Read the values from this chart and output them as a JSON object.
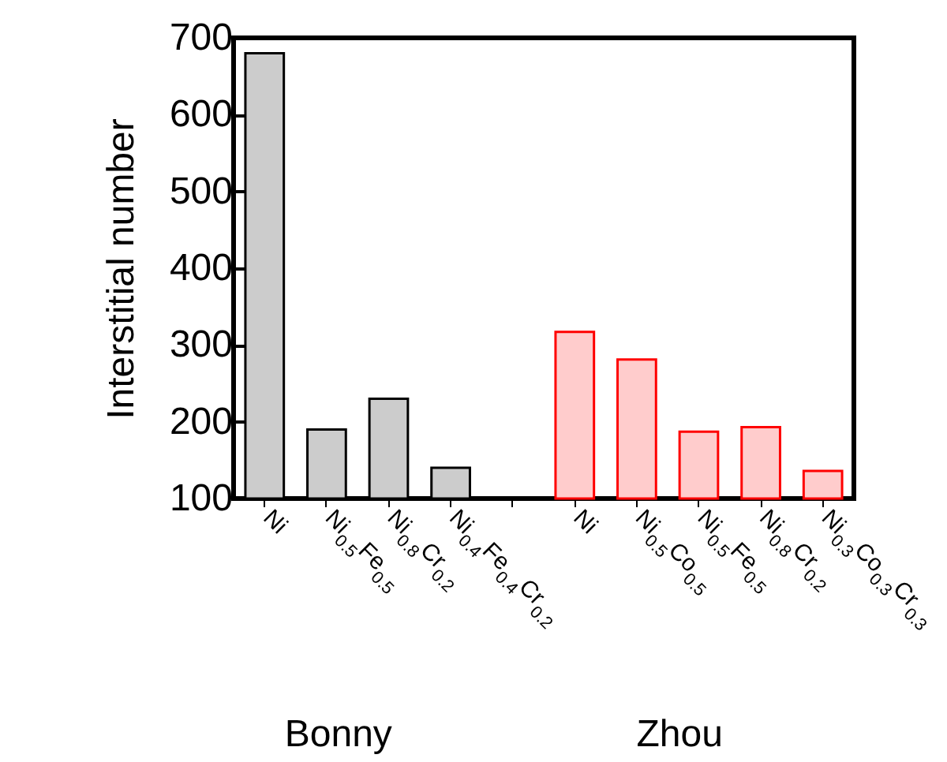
{
  "chart_data": {
    "type": "bar",
    "ylabel": "Interstitial number",
    "categories": [
      "Ni",
      "Ni$_{0.5}$Fe$_{0.5}$",
      "Ni$_{0.8}$Cr$_{0.2}$",
      "Ni$_{0.4}$Fe$_{0.4}$Cr$_{0.2}$",
      null,
      "Ni",
      "Ni$_{0.5}$Co$_{0.5}$",
      "Ni$_{0.5}$Fe$_{0.5}$",
      "Ni$_{0.8}$Cr$_{0.2}$",
      "Ni$_{0.3}$Co$_{0.3}$Cr$_{0.3}$"
    ],
    "series": [
      {
        "color": "#cccccc",
        "values": [
          680,
          190,
          230,
          140,
          null,
          null,
          null,
          null,
          null,
          null
        ]
      },
      {
        "color": "#ffcccc",
        "values": [
          null,
          null,
          null,
          null,
          null,
          317,
          281,
          187,
          193,
          136
        ]
      }
    ],
    "ylim": [
      100,
      700
    ],
    "yticks": [
      100,
      200,
      300,
      400,
      500,
      600,
      700
    ],
    "annotations": [
      "Bonny",
      "Zhou"
    ],
    "grid": false,
    "legend": false
  }
}
